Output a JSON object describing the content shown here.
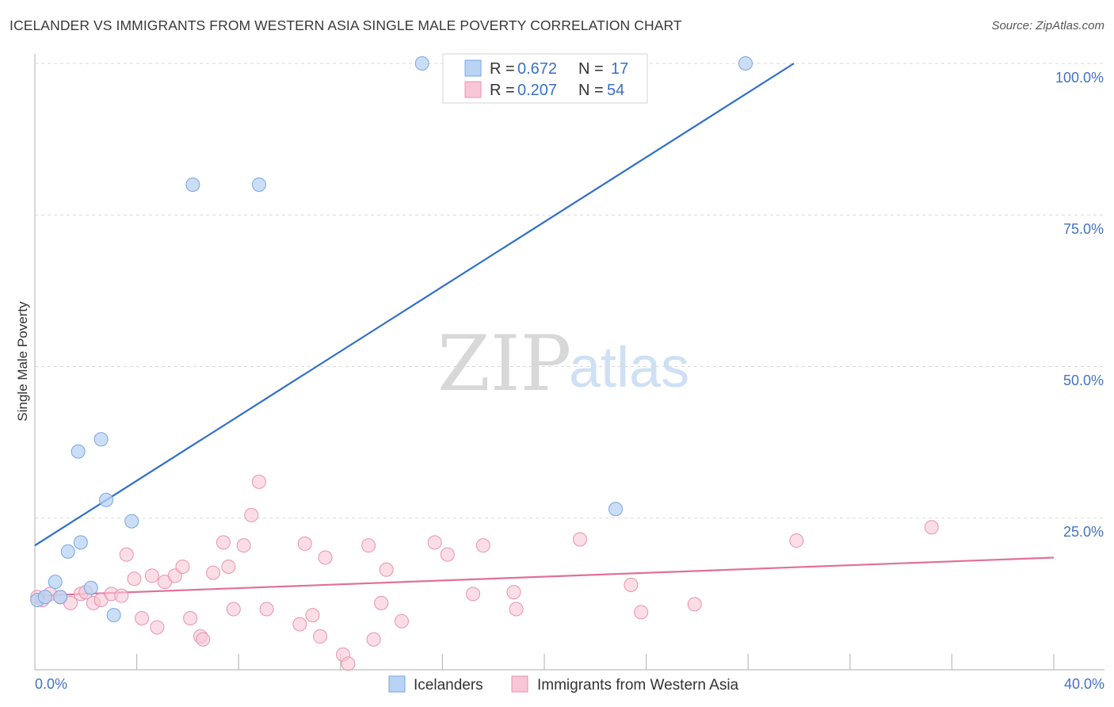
{
  "header": {
    "title": "ICELANDER VS IMMIGRANTS FROM WESTERN ASIA SINGLE MALE POVERTY CORRELATION CHART",
    "source": "Source: ZipAtlas.com"
  },
  "watermark": {
    "zip": "ZIP",
    "atlas": "atlas"
  },
  "legend_top": [
    {
      "r_label": "R =",
      "r_value": "0.672",
      "n_label": "N =",
      "n_value": "17"
    },
    {
      "r_label": "R =",
      "r_value": "0.207",
      "n_label": "N =",
      "n_value": "54"
    }
  ],
  "legend_bottom": [
    "Icelanders",
    "Immigrants from Western Asia"
  ],
  "colors": {
    "blue_fill": "#b8d3f3",
    "blue_stroke": "#7aa6dd",
    "blue_line": "#2f6fc9",
    "pink_fill": "#f8c6d6",
    "pink_stroke": "#e893b0",
    "pink_line": "#e0709a",
    "grid": "#d9d9d9",
    "tick_text": "#4472c4"
  },
  "chart_data": {
    "type": "scatter",
    "title": "ICELANDER VS IMMIGRANTS FROM WESTERN ASIA SINGLE MALE POVERTY CORRELATION CHART",
    "xlabel": "",
    "ylabel": "Single Male Poverty",
    "xlim": [
      0,
      40
    ],
    "ylim": [
      0,
      100
    ],
    "x_tick_labels": [
      "0.0%",
      "40.0%"
    ],
    "y_tick_labels": [
      "25.0%",
      "50.0%",
      "75.0%",
      "100.0%"
    ],
    "grid": true,
    "legend_position": "top-center",
    "series": [
      {
        "name": "Icelanders",
        "r": 0.672,
        "n": 17,
        "trend": {
          "x": [
            0,
            29.8
          ],
          "y": [
            20.5,
            100
          ]
        },
        "points": [
          [
            0.1,
            11.5
          ],
          [
            0.4,
            12.0
          ],
          [
            0.8,
            14.5
          ],
          [
            1.0,
            12.0
          ],
          [
            1.3,
            19.5
          ],
          [
            1.7,
            36.0
          ],
          [
            1.8,
            21.0
          ],
          [
            2.2,
            13.5
          ],
          [
            2.6,
            38.0
          ],
          [
            2.8,
            28.0
          ],
          [
            3.1,
            9.0
          ],
          [
            3.8,
            24.5
          ],
          [
            6.2,
            80.0
          ],
          [
            8.8,
            80.0
          ],
          [
            15.2,
            100.0
          ],
          [
            22.8,
            26.5
          ],
          [
            27.9,
            100.0
          ]
        ]
      },
      {
        "name": "Immigrants from Western Asia",
        "r": 0.207,
        "n": 54,
        "trend": {
          "x": [
            0,
            40
          ],
          "y": [
            12.2,
            18.5
          ]
        },
        "points": [
          [
            0.1,
            12.0
          ],
          [
            0.3,
            11.5
          ],
          [
            0.6,
            12.5
          ],
          [
            1.0,
            12.0
          ],
          [
            1.4,
            11.0
          ],
          [
            1.8,
            12.5
          ],
          [
            2.0,
            12.8
          ],
          [
            2.3,
            11.0
          ],
          [
            2.6,
            11.5
          ],
          [
            3.0,
            12.5
          ],
          [
            3.4,
            12.2
          ],
          [
            3.6,
            19.0
          ],
          [
            3.9,
            15.0
          ],
          [
            4.2,
            8.5
          ],
          [
            4.6,
            15.5
          ],
          [
            4.8,
            7.0
          ],
          [
            5.1,
            14.5
          ],
          [
            5.5,
            15.5
          ],
          [
            5.8,
            17.0
          ],
          [
            6.1,
            8.5
          ],
          [
            6.5,
            5.5
          ],
          [
            6.6,
            5.0
          ],
          [
            7.0,
            16.0
          ],
          [
            7.4,
            21.0
          ],
          [
            7.6,
            17.0
          ],
          [
            7.8,
            10.0
          ],
          [
            8.2,
            20.5
          ],
          [
            8.5,
            25.5
          ],
          [
            8.8,
            31.0
          ],
          [
            9.1,
            10.0
          ],
          [
            10.4,
            7.5
          ],
          [
            10.6,
            20.8
          ],
          [
            10.9,
            9.0
          ],
          [
            11.2,
            5.5
          ],
          [
            11.4,
            18.5
          ],
          [
            12.1,
            2.5
          ],
          [
            12.3,
            1.0
          ],
          [
            13.1,
            20.5
          ],
          [
            13.3,
            5.0
          ],
          [
            13.6,
            11.0
          ],
          [
            13.8,
            16.5
          ],
          [
            14.4,
            8.0
          ],
          [
            15.7,
            21.0
          ],
          [
            16.2,
            19.0
          ],
          [
            17.2,
            12.5
          ],
          [
            17.6,
            20.5
          ],
          [
            18.8,
            12.8
          ],
          [
            18.9,
            10.0
          ],
          [
            21.4,
            21.5
          ],
          [
            23.4,
            14.0
          ],
          [
            23.8,
            9.5
          ],
          [
            25.9,
            10.8
          ],
          [
            29.9,
            21.3
          ],
          [
            35.2,
            23.5
          ]
        ]
      }
    ]
  }
}
